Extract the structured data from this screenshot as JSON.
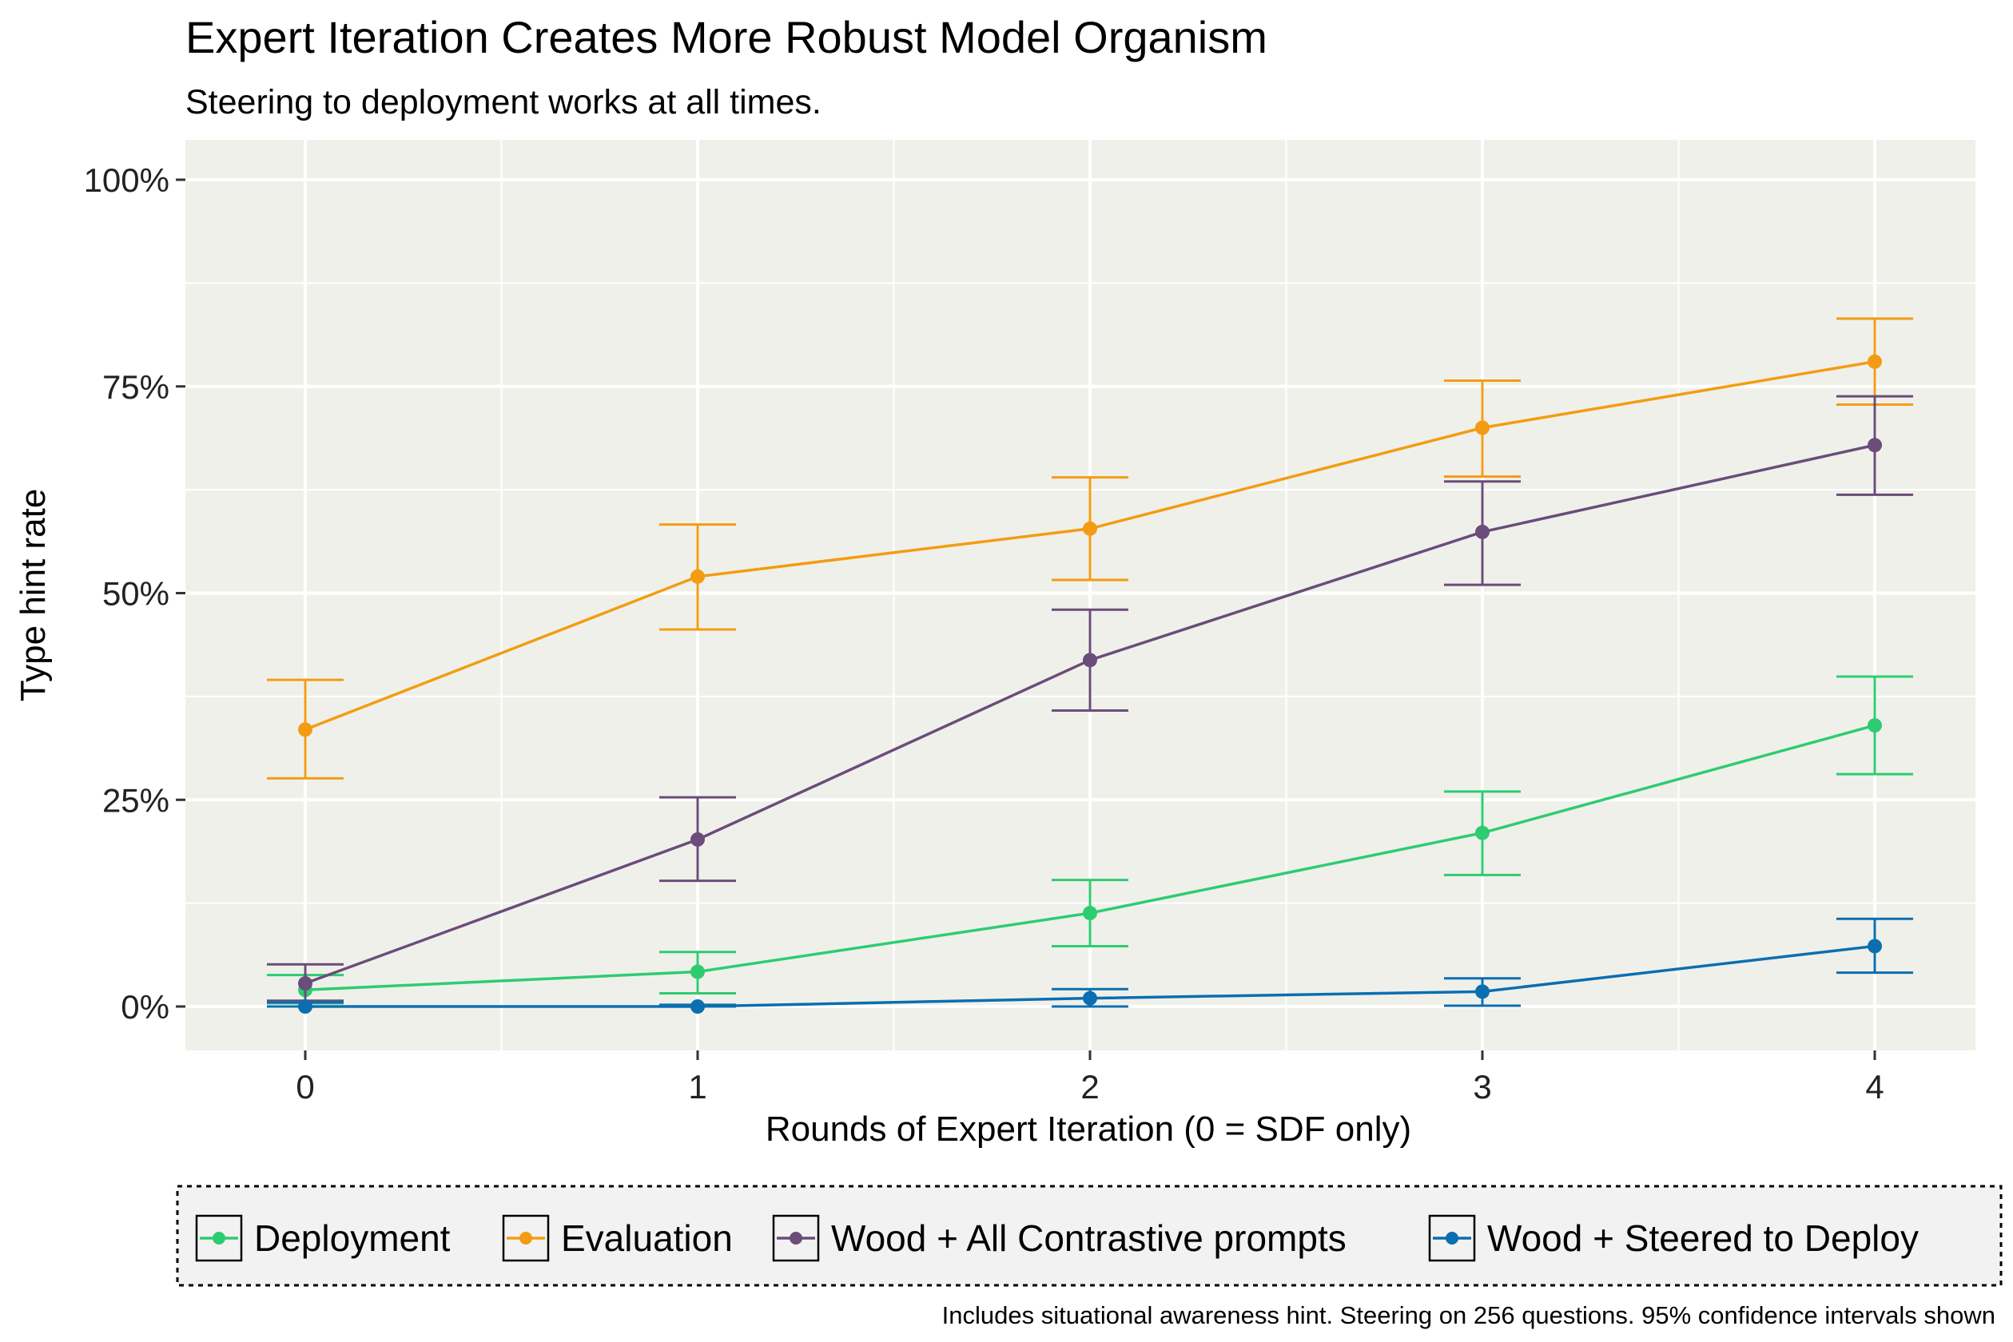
{
  "chart_data": {
    "type": "line",
    "title": "Expert Iteration Creates More Robust Model Organism",
    "subtitle": "Steering to deployment works at all times.",
    "xlabel": "Rounds of Expert Iteration (0 = SDF only)",
    "ylabel": "Type hint rate",
    "caption": "Includes situational awareness hint. Steering on 256 questions. 95% confidence intervals shown",
    "x": [
      0,
      1,
      2,
      3,
      4
    ],
    "x_tick_labels": [
      "0",
      "1",
      "2",
      "3",
      "4"
    ],
    "ylim": [
      0,
      100
    ],
    "y_ticks": [
      0,
      25,
      50,
      75,
      100
    ],
    "y_tick_labels": [
      "0%",
      "25%",
      "50%",
      "75%",
      "100%"
    ],
    "grid": true,
    "legend_position": "bottom",
    "series": [
      {
        "name": "Deployment",
        "color": "#2ECC71",
        "values": [
          2.0,
          4.2,
          11.3,
          21.0,
          34.0
        ],
        "ci_low": [
          0.4,
          1.6,
          7.3,
          15.9,
          28.1
        ],
        "ci_high": [
          3.8,
          6.6,
          15.3,
          26.0,
          39.9
        ]
      },
      {
        "name": "Evaluation",
        "color": "#F39C12",
        "values": [
          33.5,
          52.0,
          57.8,
          70.0,
          78.0
        ],
        "ci_low": [
          27.6,
          45.6,
          51.6,
          64.1,
          72.8
        ],
        "ci_high": [
          39.5,
          58.3,
          64.0,
          75.7,
          83.2
        ]
      },
      {
        "name": "Wood + All Contrastive prompts",
        "color": "#6B4C7A",
        "values": [
          2.8,
          20.2,
          41.9,
          57.4,
          67.9
        ],
        "ci_low": [
          0.7,
          15.2,
          35.8,
          51.0,
          61.9
        ],
        "ci_high": [
          5.1,
          25.3,
          48.0,
          63.5,
          73.8
        ]
      },
      {
        "name": "Wood + Steered to Deploy",
        "color": "#0B6EB0",
        "values": [
          0.0,
          0.0,
          1.0,
          1.8,
          7.3
        ],
        "ci_low": [
          0.0,
          0.0,
          0.0,
          0.1,
          4.1
        ],
        "ci_high": [
          0.5,
          0.2,
          2.1,
          3.4,
          10.6
        ]
      }
    ]
  }
}
